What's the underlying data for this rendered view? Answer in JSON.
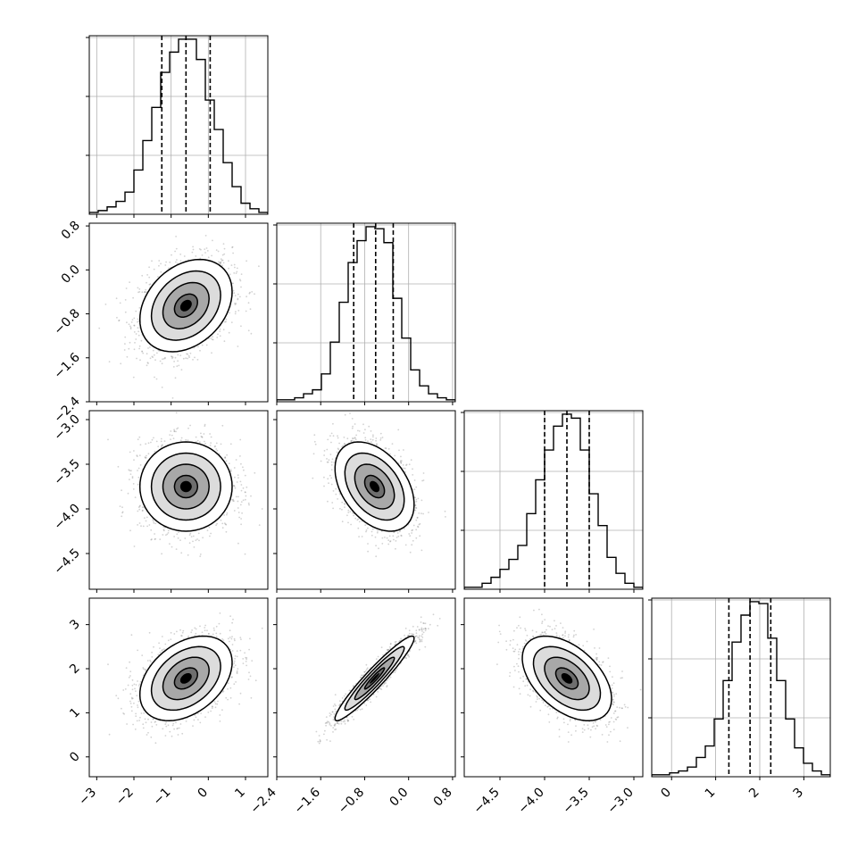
{
  "chart_data": {
    "type": "corner",
    "title": "",
    "parameters": [
      "",
      "",
      "",
      ""
    ],
    "grid": true,
    "colors": {
      "line": "#000000",
      "grid": "#b0b0b0",
      "scatter": "#7f7f7f",
      "hist2d_dark": "#000000",
      "hist2d_light": "#ffffff"
    },
    "ranges": [
      [
        -3.2,
        1.6
      ],
      [
        -2.4,
        0.85
      ],
      [
        -4.9,
        -2.9
      ],
      [
        -0.45,
        3.6
      ]
    ],
    "tick_labels": [
      [
        "−3",
        "−2",
        "−1",
        "0",
        "1"
      ],
      [
        "−2.4",
        "−1.6",
        "−0.8",
        "0.0",
        "0.8"
      ],
      [
        "−4.5",
        "−4.0",
        "−3.5",
        "−3.0"
      ],
      [
        "0",
        "1",
        "2",
        "3"
      ]
    ],
    "tick_values": [
      [
        -3,
        -2,
        -1,
        0,
        1
      ],
      [
        -2.4,
        -1.6,
        -0.8,
        0.0,
        0.8
      ],
      [
        -4.5,
        -4.0,
        -3.5,
        -3.0
      ],
      [
        0,
        1,
        2,
        3
      ]
    ],
    "quantiles": [
      [
        -1.25,
        -0.6,
        0.05
      ],
      [
        -1.0,
        -0.6,
        -0.28
      ],
      [
        -4.0,
        -3.75,
        -3.5
      ],
      [
        1.3,
        1.78,
        2.25
      ]
    ],
    "histograms": [
      {
        "bin_edges": [
          -3.2,
          -2.96,
          -2.72,
          -2.48,
          -2.24,
          -2.0,
          -1.76,
          -1.52,
          -1.28,
          -1.04,
          -0.8,
          -0.56,
          -0.32,
          -0.08,
          0.16,
          0.4,
          0.64,
          0.88,
          1.12,
          1.36,
          1.6
        ],
        "counts": [
          1,
          2,
          4,
          7,
          12,
          24,
          40,
          58,
          77,
          88,
          95,
          95,
          84,
          62,
          46,
          28,
          15,
          6,
          3,
          1
        ]
      },
      {
        "bin_edges": [
          -2.4,
          -2.2375,
          -2.075,
          -1.9125,
          -1.75,
          -1.5875,
          -1.425,
          -1.2625,
          -1.1,
          -0.9375,
          -0.775,
          -0.6125,
          -0.45,
          -0.2875,
          -0.125,
          0.0375,
          0.2,
          0.3625,
          0.525,
          0.6875,
          0.85
        ],
        "counts": [
          1,
          1,
          2,
          4,
          6,
          14,
          30,
          50,
          70,
          81,
          88,
          87,
          80,
          52,
          32,
          16,
          8,
          4,
          2,
          1
        ]
      },
      {
        "bin_edges": [
          -4.9,
          -4.8,
          -4.7,
          -4.6,
          -4.5,
          -4.4,
          -4.3,
          -4.2,
          -4.1,
          -4.0,
          -3.9,
          -3.8,
          -3.7,
          -3.6,
          -3.5,
          -3.4,
          -3.3,
          -3.2,
          -3.1,
          -3.0,
          -2.9
        ],
        "counts": [
          1,
          1,
          3,
          6,
          10,
          15,
          22,
          38,
          55,
          70,
          82,
          88,
          86,
          70,
          48,
          32,
          16,
          8,
          3,
          1
        ]
      },
      {
        "bin_edges": [
          -0.45,
          -0.2475,
          -0.045,
          0.1575,
          0.36,
          0.5625,
          0.765,
          0.9675,
          1.17,
          1.3725,
          1.575,
          1.7775,
          1.98,
          2.1825,
          2.385,
          2.5875,
          2.79,
          2.9925,
          3.195,
          3.3975,
          3.6
        ],
        "counts": [
          1,
          1,
          2,
          3,
          5,
          10,
          16,
          30,
          50,
          70,
          84,
          91,
          90,
          72,
          50,
          30,
          15,
          7,
          3,
          1
        ]
      }
    ],
    "pair_moments": [
      {
        "i": 1,
        "j": 0,
        "mean": [
          -0.6,
          -0.65
        ],
        "sd": [
          0.62,
          0.42
        ],
        "rho": 0.3
      },
      {
        "i": 2,
        "j": 0,
        "mean": [
          -0.6,
          -3.75
        ],
        "sd": [
          0.62,
          0.25
        ],
        "rho": 0.0
      },
      {
        "i": 2,
        "j": 1,
        "mean": [
          -0.62,
          -3.75
        ],
        "sd": [
          0.36,
          0.25
        ],
        "rho": -0.4
      },
      {
        "i": 3,
        "j": 0,
        "mean": [
          -0.6,
          1.78
        ],
        "sd": [
          0.62,
          0.48
        ],
        "rho": 0.38
      },
      {
        "i": 3,
        "j": 1,
        "mean": [
          -0.62,
          1.78
        ],
        "sd": [
          0.36,
          0.48
        ],
        "rho": 0.95
      },
      {
        "i": 3,
        "j": 2,
        "mean": [
          -3.75,
          1.78
        ],
        "sd": [
          0.25,
          0.48
        ],
        "rho": -0.48
      }
    ],
    "contour_levels_sigma": [
      0.5,
      1.0,
      1.5,
      2.0
    ]
  }
}
